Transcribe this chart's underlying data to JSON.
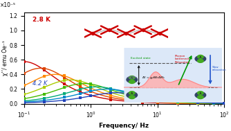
{
  "xlabel": "Frequency/ Hz",
  "ylabel": "χ’’/ emu Oe⁻¹",
  "ylim": [
    0,
    1.25e-05
  ],
  "yticks": [
    0.0,
    2e-06,
    4e-06,
    6e-06,
    8e-06,
    1e-05,
    1.2e-05
  ],
  "ytick_labels": [
    "0.0",
    "0.2",
    "0.4",
    "0.6",
    "0.8",
    "1.0",
    "1.2"
  ],
  "ylabel_multiplier": "×10⁻⁵",
  "colors": [
    "#cc0000",
    "#dd4400",
    "#ff8800",
    "#aacc00",
    "#44bb00",
    "#00aa77",
    "#0088cc",
    "#2244bb"
  ],
  "chi0_vals": [
    1.15e-05,
    9.7e-06,
    8e-06,
    6.5e-06,
    5.5e-06,
    4.6e-06,
    4e-06,
    3e-06
  ],
  "tau_vals": [
    1.6,
    0.9,
    0.55,
    0.32,
    0.2,
    0.13,
    0.09,
    0.065
  ],
  "label_top": "2.8 K",
  "label_bottom": "4.2 K",
  "label_top_color": "#cc0000",
  "label_bottom_color": "#2244bb",
  "bg_color": "#ffffff"
}
